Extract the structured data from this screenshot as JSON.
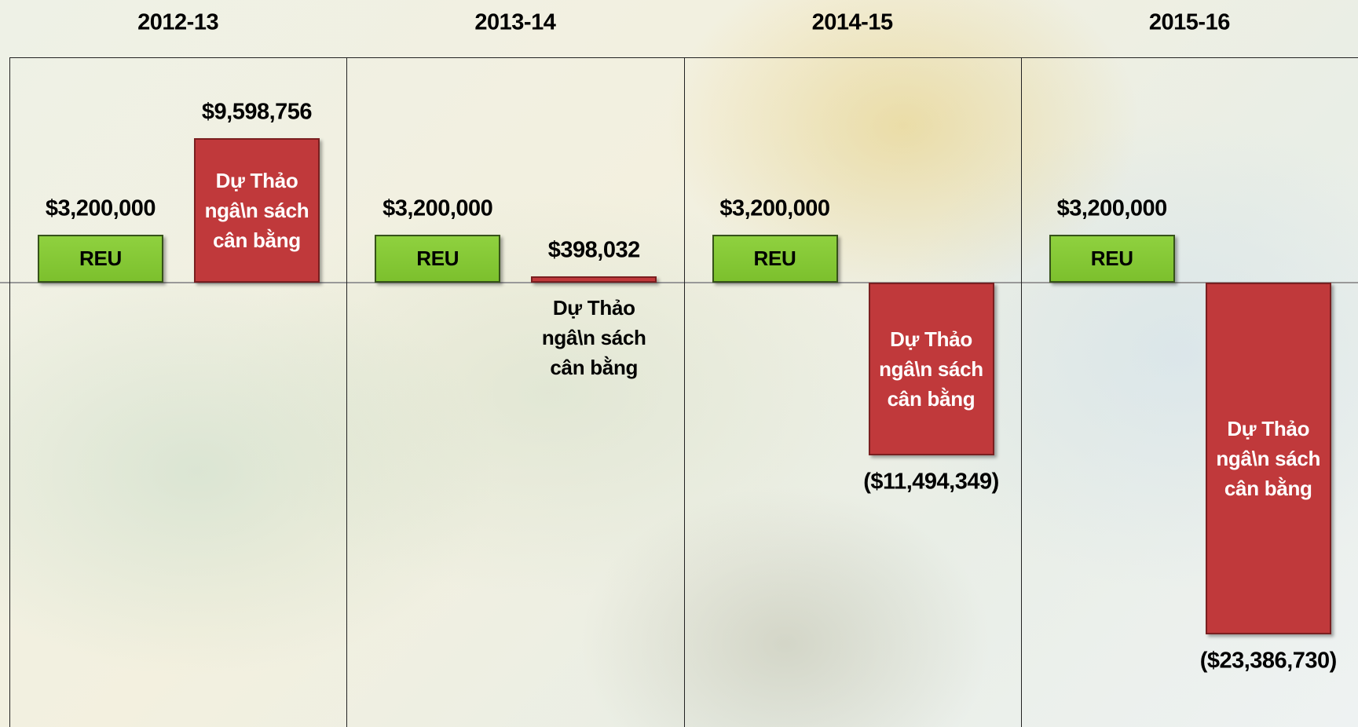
{
  "chart_data": {
    "type": "bar",
    "categories": [
      "2012-13",
      "2013-14",
      "2014-15",
      "2015-16"
    ],
    "series": [
      {
        "name": "REU",
        "color": "#8fd13f",
        "values": [
          3200000,
          3200000,
          3200000,
          3200000
        ],
        "value_labels": [
          "$3,200,000",
          "$3,200,000",
          "$3,200,000",
          "$3,200,000"
        ]
      },
      {
        "name": "Dự Thảo ngâ\\n sách cân bằng",
        "color": "#c0393b",
        "values": [
          9598756,
          398032,
          -11494349,
          -23386730
        ],
        "value_labels": [
          "$9,598,756",
          "$398,032",
          "($11,494,349)",
          "($23,386,730)"
        ]
      }
    ]
  }
}
